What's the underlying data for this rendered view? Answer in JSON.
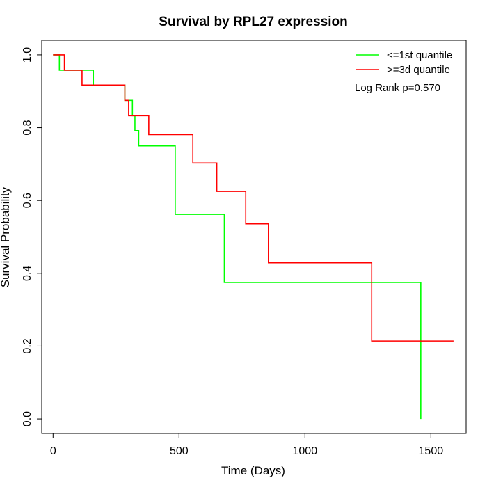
{
  "chart_data": {
    "type": "line",
    "title": "Survival by RPL27 expression",
    "xlabel": "Time (Days)",
    "ylabel": "Survival Probability",
    "xlim": [
      -45,
      1640
    ],
    "ylim": [
      -0.04,
      1.04
    ],
    "x_ticks": [
      0,
      500,
      1000,
      1500
    ],
    "y_ticks": [
      0.0,
      0.2,
      0.4,
      0.6,
      0.8,
      1.0
    ],
    "x_tick_labels": [
      "0",
      "500",
      "1000",
      "1500"
    ],
    "y_tick_labels": [
      "0.0",
      "0.2",
      "0.4",
      "0.6",
      "0.8",
      "1.0"
    ],
    "grid": false,
    "legend_position": "top-right",
    "annotation": "Log Rank p=0.570",
    "series": [
      {
        "name": "<=1st quantile",
        "color": "#00ff00",
        "step": true,
        "x": [
          0,
          25,
          160,
          285,
          315,
          325,
          340,
          355,
          485,
          680,
          1460,
          1460
        ],
        "y": [
          1.0,
          0.958,
          0.917,
          0.875,
          0.833,
          0.792,
          0.75,
          0.75,
          0.562,
          0.375,
          0.375,
          0.0
        ]
      },
      {
        "name": ">=3d quantile",
        "color": "#ff0000",
        "step": true,
        "x": [
          0,
          45,
          115,
          285,
          300,
          380,
          555,
          650,
          765,
          855,
          1265,
          1590
        ],
        "y": [
          1.0,
          0.958,
          0.917,
          0.875,
          0.833,
          0.781,
          0.703,
          0.625,
          0.536,
          0.429,
          0.214,
          0.214
        ]
      }
    ]
  }
}
